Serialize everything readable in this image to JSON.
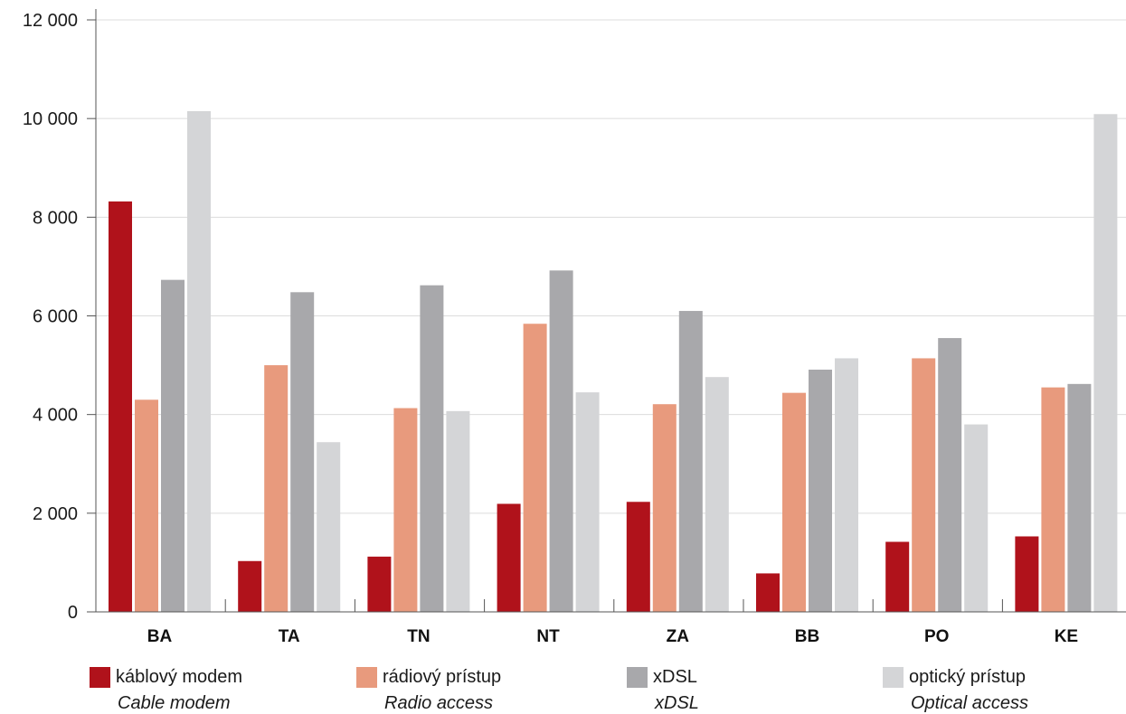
{
  "chart_data": {
    "type": "bar",
    "categories": [
      "BA",
      "TA",
      "TN",
      "NT",
      "ZA",
      "BB",
      "PO",
      "KE"
    ],
    "series": [
      {
        "name": "káblový modem",
        "name_en": "Cable modem",
        "color": "#b0121b",
        "values": [
          8320,
          1030,
          1120,
          2190,
          2230,
          780,
          1420,
          1530
        ]
      },
      {
        "name": "rádiový prístup",
        "name_en": "Radio access",
        "color": "#e89a7d",
        "values": [
          4300,
          5000,
          4130,
          5840,
          4210,
          4440,
          5140,
          4550
        ]
      },
      {
        "name": "xDSL",
        "name_en": "xDSL",
        "color": "#a8a8ab",
        "values": [
          6730,
          6480,
          6620,
          6920,
          6100,
          4910,
          5550,
          4620
        ]
      },
      {
        "name": "optický prístup",
        "name_en": "Optical access",
        "color": "#d4d5d7",
        "values": [
          10150,
          3440,
          4070,
          4450,
          4760,
          5140,
          3800,
          10090
        ]
      }
    ],
    "y_ticks": [
      "0",
      "2 000",
      "4 000",
      "6 000",
      "8 000",
      "10 000",
      "12 000"
    ],
    "ylim": [
      0,
      12000
    ],
    "grid": true,
    "legend_position": "bottom",
    "title": "",
    "xlabel": "",
    "ylabel": ""
  }
}
